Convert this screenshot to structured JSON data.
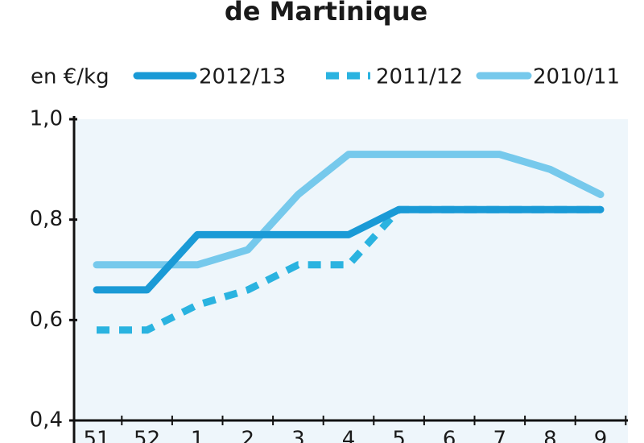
{
  "chart_data": {
    "type": "line",
    "title": "de Martinique",
    "y_unit_label": "en €/kg",
    "categories": [
      "51",
      "52",
      "1",
      "2",
      "3",
      "4",
      "5",
      "6",
      "7",
      "8",
      "9"
    ],
    "series": [
      {
        "name": "2012/13",
        "color": "#1a9ad6",
        "dashed": false,
        "values": [
          0.66,
          0.66,
          0.77,
          0.77,
          0.77,
          0.77,
          0.82,
          0.82,
          0.82,
          0.82,
          0.82
        ]
      },
      {
        "name": "2011/12",
        "color": "#2ab3e0",
        "dashed": true,
        "values": [
          0.58,
          0.58,
          0.63,
          0.66,
          0.71,
          0.71,
          0.82,
          0.82,
          0.82,
          0.82,
          0.82
        ]
      },
      {
        "name": "2010/11",
        "color": "#76c9ec",
        "dashed": false,
        "values": [
          0.71,
          0.71,
          0.71,
          0.74,
          0.85,
          0.93,
          0.93,
          0.93,
          0.93,
          0.9,
          0.85
        ]
      }
    ],
    "ylim": [
      0.4,
      1.0
    ],
    "yticks": [
      {
        "value": 0.4,
        "label": "0,4"
      },
      {
        "value": 0.6,
        "label": "0,6"
      },
      {
        "value": 0.8,
        "label": "0,8"
      },
      {
        "value": 1.0,
        "label": "1,0"
      }
    ],
    "grid": false
  }
}
